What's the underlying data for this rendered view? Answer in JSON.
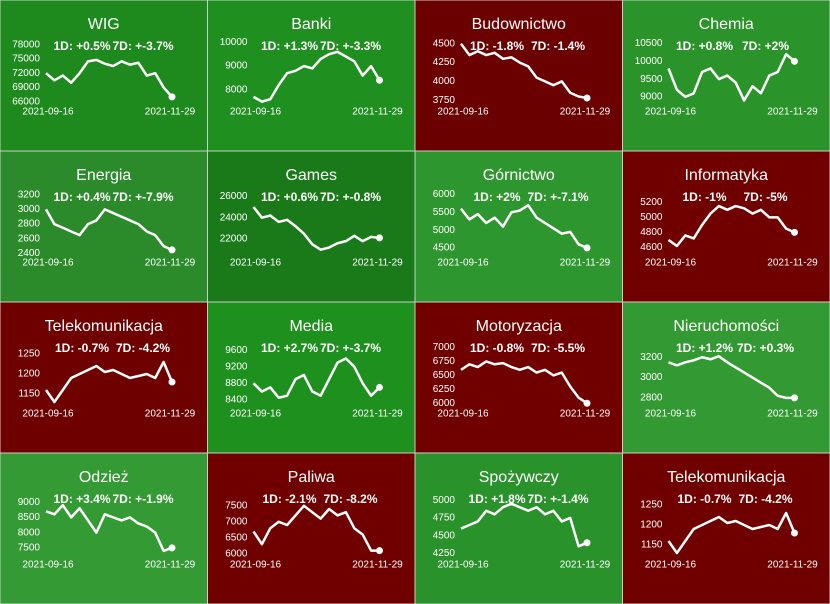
{
  "chart_data": [
    {
      "type": "line",
      "title": "WIG",
      "background": "#1e8a1e",
      "color": "#ffffff",
      "changes": [
        "1D: +0.5%",
        "7D: +-3.7%"
      ],
      "ylim": [
        65500,
        79000
      ],
      "yticks": [
        66000,
        69000,
        72000,
        75000,
        78000
      ],
      "categories": [
        "2021-09-16",
        null,
        null,
        null,
        null,
        null,
        null,
        null,
        null,
        null,
        null,
        null,
        null,
        null,
        null,
        "2021-11-29"
      ],
      "values": [
        72000,
        70500,
        71500,
        70000,
        72000,
        74500,
        74800,
        74000,
        73500,
        74500,
        73800,
        74200,
        71500,
        72000,
        69000,
        67000
      ]
    },
    {
      "type": "line",
      "title": "Banki",
      "background": "#1f8f1f",
      "color": "#ffffff",
      "changes": [
        "1D: +1.3%",
        "7D: +-3.3%"
      ],
      "ylim": [
        7400,
        10100
      ],
      "yticks": [
        8000,
        9000,
        10000
      ],
      "categories": [
        "2021-09-16",
        null,
        null,
        null,
        null,
        null,
        null,
        null,
        null,
        null,
        null,
        null,
        null,
        null,
        null,
        "2021-11-29"
      ],
      "values": [
        7700,
        7500,
        7600,
        8200,
        8700,
        8800,
        9000,
        8900,
        9300,
        9500,
        9600,
        9400,
        9200,
        8600,
        9000,
        8400
      ]
    },
    {
      "type": "line",
      "title": "Budownictwo",
      "background": "#6b0000",
      "color": "#ffffff",
      "changes": [
        "1D: -1.8%",
        "7D: -1.4%"
      ],
      "ylim": [
        3700,
        4550
      ],
      "yticks": [
        3750,
        4000,
        4250,
        4500
      ],
      "categories": [
        "2021-09-16",
        null,
        null,
        null,
        null,
        null,
        null,
        null,
        null,
        null,
        null,
        null,
        null,
        null,
        null,
        "2021-11-29"
      ],
      "values": [
        4500,
        4350,
        4400,
        4350,
        4380,
        4300,
        4320,
        4250,
        4200,
        4050,
        4000,
        3950,
        4000,
        3850,
        3800,
        3780
      ]
    },
    {
      "type": "line",
      "title": "Chemia",
      "background": "#2a932a",
      "color": "#ffffff",
      "changes": [
        "1D: +0.8%",
        "7D: +2%"
      ],
      "ylim": [
        8800,
        10600
      ],
      "yticks": [
        9000,
        9500,
        10000,
        10500
      ],
      "categories": [
        "2021-09-16",
        null,
        null,
        null,
        null,
        null,
        null,
        null,
        null,
        null,
        null,
        null,
        null,
        null,
        null,
        "2021-11-29"
      ],
      "values": [
        9800,
        9200,
        9000,
        9100,
        9700,
        9800,
        9500,
        9600,
        9400,
        8900,
        9300,
        9100,
        9600,
        9700,
        10200,
        10000
      ]
    },
    {
      "type": "line",
      "title": "Energia",
      "background": "#2b8b2b",
      "color": "#ffffff",
      "changes": [
        "1D: +0.4%",
        "7D: +-7.9%"
      ],
      "ylim": [
        2380,
        3250
      ],
      "yticks": [
        2400,
        2600,
        2800,
        3000,
        3200
      ],
      "categories": [
        "2021-09-16",
        null,
        null,
        null,
        null,
        null,
        null,
        null,
        null,
        null,
        null,
        null,
        null,
        null,
        null,
        "2021-11-29"
      ],
      "values": [
        3000,
        2800,
        2750,
        2700,
        2650,
        2800,
        2850,
        3000,
        2950,
        2900,
        2850,
        2800,
        2700,
        2650,
        2500,
        2450
      ]
    },
    {
      "type": "line",
      "title": "Games",
      "background": "#1a7a1a",
      "color": "#ffffff",
      "changes": [
        "1D: +0.6%",
        "7D: +-0.8%"
      ],
      "ylim": [
        20500,
        26500
      ],
      "yticks": [
        22000,
        24000,
        26000
      ],
      "categories": [
        "2021-09-16",
        null,
        null,
        null,
        null,
        null,
        null,
        null,
        null,
        null,
        null,
        null,
        null,
        null,
        null,
        "2021-11-29"
      ],
      "values": [
        25000,
        24000,
        24200,
        23600,
        23800,
        23200,
        22500,
        21500,
        21000,
        21200,
        21600,
        21800,
        22300,
        21800,
        22200,
        22100
      ]
    },
    {
      "type": "line",
      "title": "Górnictwo",
      "background": "#2e962e",
      "color": "#ffffff",
      "changes": [
        "1D: +2%",
        "7D: +-7.1%"
      ],
      "ylim": [
        4300,
        6100
      ],
      "yticks": [
        4500,
        5000,
        5500,
        6000
      ],
      "categories": [
        "2021-09-16",
        null,
        null,
        null,
        null,
        null,
        null,
        null,
        null,
        null,
        null,
        null,
        null,
        null,
        null,
        "2021-11-29"
      ],
      "values": [
        5600,
        5300,
        5450,
        5200,
        5350,
        5100,
        5500,
        5550,
        5700,
        5350,
        5200,
        5050,
        4900,
        4950,
        4600,
        4500
      ]
    },
    {
      "type": "line",
      "title": "Informatyka",
      "background": "#700000",
      "color": "#ffffff",
      "changes": [
        "1D: -1%",
        "7D: -5%"
      ],
      "ylim": [
        4500,
        5350
      ],
      "yticks": [
        4600,
        4800,
        5000,
        5200
      ],
      "categories": [
        "2021-09-16",
        null,
        null,
        null,
        null,
        null,
        null,
        null,
        null,
        null,
        null,
        null,
        null,
        null,
        null,
        "2021-11-29"
      ],
      "values": [
        4700,
        4620,
        4760,
        4720,
        4900,
        5050,
        5150,
        5100,
        5150,
        5120,
        5050,
        5100,
        5000,
        5000,
        4850,
        4800
      ]
    },
    {
      "type": "line",
      "title": "Telekomunikacja",
      "background": "#6e0000",
      "color": "#ffffff",
      "changes": [
        "1D: -0.7%",
        "7D: -4.2%"
      ],
      "ylim": [
        1120,
        1280
      ],
      "yticks": [
        1150,
        1200,
        1250
      ],
      "categories": [
        "2021-09-16",
        null,
        null,
        null,
        null,
        null,
        null,
        null,
        null,
        null,
        null,
        null,
        null,
        null,
        null,
        "2021-11-29"
      ],
      "values": [
        1160,
        1130,
        1160,
        1190,
        1200,
        1210,
        1220,
        1205,
        1210,
        1200,
        1190,
        1195,
        1200,
        1190,
        1230,
        1180
      ]
    },
    {
      "type": "line",
      "title": "Media",
      "background": "#1e901e",
      "color": "#ffffff",
      "changes": [
        "1D: +2.7%",
        "7D: +-3.7%"
      ],
      "ylim": [
        8250,
        9800
      ],
      "yticks": [
        8400,
        8800,
        9200,
        9600
      ],
      "categories": [
        "2021-09-16",
        null,
        null,
        null,
        null,
        null,
        null,
        null,
        null,
        null,
        null,
        null,
        null,
        null,
        null,
        "2021-11-29"
      ],
      "values": [
        8800,
        8600,
        8700,
        8450,
        8500,
        8900,
        9000,
        8600,
        8500,
        8900,
        9300,
        9400,
        9200,
        8800,
        8500,
        8700
      ]
    },
    {
      "type": "line",
      "title": "Motoryzacja",
      "background": "#700000",
      "color": "#ffffff",
      "changes": [
        "1D: -0.8%",
        "7D: -5.5%"
      ],
      "ylim": [
        5950,
        7100
      ],
      "yticks": [
        6000,
        6250,
        6500,
        6750,
        7000
      ],
      "categories": [
        "2021-09-16",
        null,
        null,
        null,
        null,
        null,
        null,
        null,
        null,
        null,
        null,
        null,
        null,
        null,
        null,
        "2021-11-29"
      ],
      "values": [
        6600,
        6700,
        6650,
        6750,
        6700,
        6720,
        6650,
        6600,
        6650,
        6550,
        6600,
        6500,
        6550,
        6300,
        6100,
        6000
      ]
    },
    {
      "type": "line",
      "title": "Nieruchomości",
      "background": "#339933",
      "color": "#ffffff",
      "changes": [
        "1D: +1.2%",
        "7D: +0.3%"
      ],
      "ylim": [
        2720,
        3350
      ],
      "yticks": [
        2800,
        3000,
        3200
      ],
      "categories": [
        "2021-09-16",
        null,
        null,
        null,
        null,
        null,
        null,
        null,
        null,
        null,
        null,
        null,
        null,
        null,
        null,
        "2021-11-29"
      ],
      "values": [
        3150,
        3120,
        3150,
        3170,
        3200,
        3180,
        3210,
        3150,
        3100,
        3050,
        3000,
        2950,
        2900,
        2820,
        2800,
        2800
      ]
    },
    {
      "type": "line",
      "title": "Odzież",
      "background": "#349a34",
      "color": "#ffffff",
      "changes": [
        "1D: +3.4%",
        "7D: +-1.9%"
      ],
      "ylim": [
        7200,
        9300
      ],
      "yticks": [
        7500,
        8000,
        8500,
        9000
      ],
      "categories": [
        "2021-09-16",
        null,
        null,
        null,
        null,
        null,
        null,
        null,
        null,
        null,
        null,
        null,
        null,
        null,
        null,
        "2021-11-29"
      ],
      "values": [
        8700,
        8600,
        8900,
        8500,
        8800,
        8400,
        8000,
        8600,
        8500,
        8400,
        8500,
        8300,
        8200,
        8000,
        7400,
        7500
      ]
    },
    {
      "type": "line",
      "title": "Paliwa",
      "background": "#700000",
      "color": "#ffffff",
      "changes": [
        "1D: -2.1%",
        "7D: -8.2%"
      ],
      "ylim": [
        5900,
        7900
      ],
      "yticks": [
        6000,
        6500,
        7000,
        7500
      ],
      "categories": [
        "2021-09-16",
        null,
        null,
        null,
        null,
        null,
        null,
        null,
        null,
        null,
        null,
        null,
        null,
        null,
        null,
        "2021-11-29"
      ],
      "values": [
        6700,
        6300,
        6800,
        7000,
        6900,
        7200,
        7500,
        7300,
        7100,
        7400,
        7200,
        7300,
        6800,
        6600,
        6100,
        6100
      ]
    },
    {
      "type": "line",
      "title": "Spożywczy",
      "background": "#2a922a",
      "color": "#ffffff",
      "changes": [
        "1D: +1.8%",
        "7D: +-1.4%"
      ],
      "ylim": [
        4200,
        5100
      ],
      "yticks": [
        4250,
        4500,
        4750,
        5000
      ],
      "categories": [
        "2021-09-16",
        null,
        null,
        null,
        null,
        null,
        null,
        null,
        null,
        null,
        null,
        null,
        null,
        null,
        null,
        "2021-11-29"
      ],
      "values": [
        4600,
        4650,
        4700,
        4850,
        4800,
        4900,
        4950,
        4900,
        4850,
        4900,
        4800,
        4850,
        4700,
        4750,
        4350,
        4400
      ]
    },
    {
      "type": "line",
      "title": "Telekomunikacja",
      "background": "#700000",
      "color": "#ffffff",
      "changes": [
        "1D: -0.7%",
        "7D: -4.2%"
      ],
      "ylim": [
        1120,
        1280
      ],
      "yticks": [
        1150,
        1200,
        1250
      ],
      "categories": [
        "2021-09-16",
        null,
        null,
        null,
        null,
        null,
        null,
        null,
        null,
        null,
        null,
        null,
        null,
        null,
        null,
        "2021-11-29"
      ],
      "values": [
        1160,
        1130,
        1160,
        1190,
        1200,
        1210,
        1220,
        1205,
        1210,
        1200,
        1190,
        1195,
        1200,
        1190,
        1230,
        1180
      ]
    }
  ]
}
